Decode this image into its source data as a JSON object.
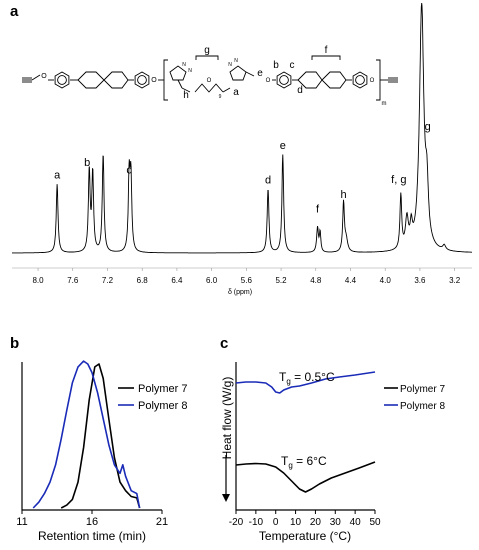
{
  "panels": {
    "a": {
      "label": "a"
    },
    "b": {
      "label": "b"
    },
    "c": {
      "label": "c"
    }
  },
  "structure": {
    "labels": [
      "g",
      "f",
      "h",
      "a",
      "e",
      "b",
      "c",
      "d"
    ],
    "subscripts": [
      "9",
      "m"
    ]
  },
  "chart_data": [
    {
      "type": "line",
      "xlabel": "δ (ppm)",
      "ylabel": "",
      "xlim": [
        8.3,
        3.0
      ],
      "x_reversed": true,
      "xticks": [
        "8.0",
        "7.6",
        "7.2",
        "6.8",
        "6.4",
        "6.0",
        "5.6",
        "5.2",
        "4.8",
        "4.4",
        "4.0",
        "3.6",
        "3.2"
      ],
      "xtick_values": [
        8.0,
        7.6,
        7.2,
        6.8,
        6.4,
        6.0,
        5.6,
        5.2,
        4.8,
        4.4,
        4.0,
        3.6,
        3.2
      ],
      "peaks": [
        {
          "label": "a",
          "ppm": 7.78,
          "height": 0.28
        },
        {
          "label": "b",
          "ppm": 7.41,
          "height": 0.33
        },
        {
          "label": "",
          "ppm": 7.37,
          "height": 0.32
        },
        {
          "label": "",
          "ppm": 7.25,
          "height": 0.4
        },
        {
          "label": "c",
          "ppm": 6.95,
          "height": 0.3
        },
        {
          "label": "",
          "ppm": 6.93,
          "height": 0.29
        },
        {
          "label": "d",
          "ppm": 5.35,
          "height": 0.26
        },
        {
          "label": "e",
          "ppm": 5.18,
          "height": 0.4
        },
        {
          "label": "f",
          "ppm": 4.78,
          "height": 0.1
        },
        {
          "label": "h",
          "ppm": 4.48,
          "height": 0.2
        },
        {
          "label": "f, g",
          "ppm": 3.82,
          "height": 0.22
        },
        {
          "label": "g",
          "ppm": 3.58,
          "height": 1.0
        }
      ]
    },
    {
      "type": "line",
      "xlabel": "Retention time (min)",
      "ylabel": "",
      "xlim": [
        11,
        21
      ],
      "xticks": [
        "11",
        "16",
        "21"
      ],
      "xtick_values": [
        11,
        16,
        21
      ],
      "series": [
        {
          "name": "Polymer 7",
          "color": "#000000",
          "x": [
            13.8,
            14.2,
            14.6,
            15.0,
            15.4,
            15.8,
            16.2,
            16.5,
            16.8,
            17.2,
            17.6,
            18.0,
            18.4,
            18.8,
            19.2,
            19.4
          ],
          "y": [
            0.0,
            0.02,
            0.06,
            0.18,
            0.42,
            0.75,
            0.98,
            1.0,
            0.9,
            0.62,
            0.35,
            0.18,
            0.12,
            0.08,
            0.07,
            0.0
          ]
        },
        {
          "name": "Polymer 8",
          "color": "#1a2bb8",
          "x": [
            11.8,
            12.2,
            12.6,
            13.0,
            13.4,
            13.8,
            14.2,
            14.6,
            15.0,
            15.4,
            15.7,
            16.0,
            16.4,
            16.8,
            17.2,
            17.6,
            18.0,
            18.2,
            18.4,
            18.8,
            19.2,
            19.4
          ],
          "y": [
            0.0,
            0.04,
            0.1,
            0.18,
            0.3,
            0.48,
            0.68,
            0.87,
            0.98,
            1.02,
            1.0,
            0.94,
            0.8,
            0.62,
            0.44,
            0.3,
            0.24,
            0.3,
            0.22,
            0.12,
            0.1,
            0.0
          ]
        }
      ]
    },
    {
      "type": "line",
      "xlabel": "Temperature (°C)",
      "ylabel": "Heat flow (W/g)",
      "xlim": [
        -20,
        50
      ],
      "xticks": [
        "-20",
        "-10",
        "0",
        "10",
        "20",
        "30",
        "40",
        "50"
      ],
      "xtick_values": [
        -20,
        -10,
        0,
        10,
        20,
        30,
        40,
        50
      ],
      "annotations": [
        {
          "text": "T",
          "sub": "g",
          "rest": " = 0.5°C",
          "series": "Polymer 8"
        },
        {
          "text": "T",
          "sub": "g",
          "rest": " = 6°C",
          "series": "Polymer 7"
        }
      ],
      "series": [
        {
          "name": "Polymer 7",
          "color": "#000000",
          "x": [
            -20,
            -15,
            -10,
            -5,
            0,
            4,
            8,
            12,
            15,
            18,
            22,
            28,
            35,
            42,
            50
          ],
          "y": [
            0.0,
            0.01,
            0.015,
            0.01,
            -0.02,
            -0.08,
            -0.16,
            -0.24,
            -0.27,
            -0.24,
            -0.19,
            -0.13,
            -0.08,
            -0.03,
            0.03
          ]
        },
        {
          "name": "Polymer 8",
          "color": "#1a2bb8",
          "x": [
            -20,
            -15,
            -10,
            -5,
            -2,
            0,
            2,
            4,
            8,
            12,
            18,
            25,
            32,
            40,
            50
          ],
          "y": [
            0.0,
            0.01,
            0.01,
            0.0,
            -0.04,
            -0.09,
            -0.1,
            -0.07,
            -0.04,
            -0.03,
            0.0,
            0.04,
            0.06,
            0.08,
            0.11
          ]
        }
      ]
    }
  ]
}
